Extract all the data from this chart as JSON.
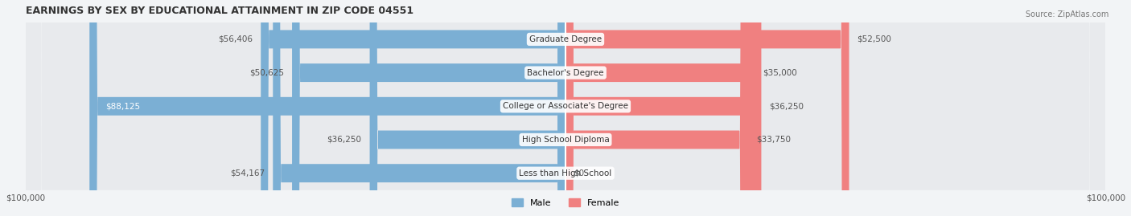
{
  "title": "EARNINGS BY SEX BY EDUCATIONAL ATTAINMENT IN ZIP CODE 04551",
  "source": "Source: ZipAtlas.com",
  "categories": [
    "Less than High School",
    "High School Diploma",
    "College or Associate's Degree",
    "Bachelor's Degree",
    "Graduate Degree"
  ],
  "male_values": [
    54167,
    36250,
    88125,
    50625,
    56406
  ],
  "female_values": [
    0,
    33750,
    36250,
    35000,
    52500
  ],
  "male_labels": [
    "$54,167",
    "$36,250",
    "$88,125",
    "$50,625",
    "$56,406"
  ],
  "female_labels": [
    "$0",
    "$33,750",
    "$36,250",
    "$35,000",
    "$52,500"
  ],
  "max_value": 100000,
  "male_color": "#7bafd4",
  "female_color": "#f08080",
  "male_color_light": "#a8c8e8",
  "female_color_light": "#f4a0b0",
  "bg_color": "#f0f4f8",
  "row_bg": "#e8ecf0",
  "title_fontsize": 9,
  "label_fontsize": 7.5,
  "tick_fontsize": 7.5,
  "legend_fontsize": 8
}
